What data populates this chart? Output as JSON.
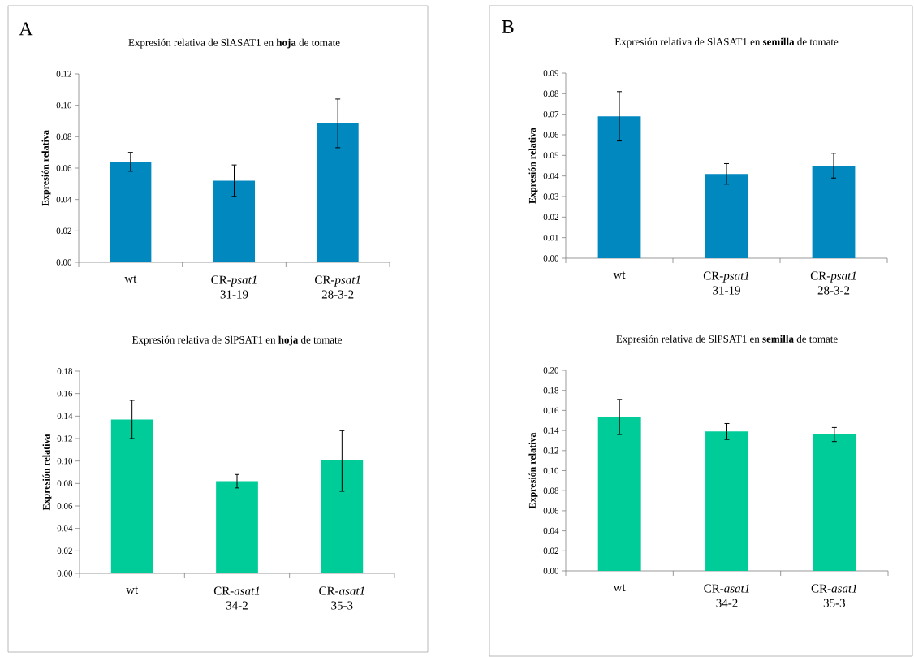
{
  "chart_data": [
    {
      "type": "bar",
      "title": "Expresión relativa de SlASAT1 en **hoja** de tomate",
      "ylabel": "Expresión relativa",
      "annotations": [
        "A"
      ],
      "color": "#0088bf",
      "categories": [
        "wt",
        "CR-*psat1* 31-19",
        "CR-*psat1* 28-3-2"
      ],
      "values": [
        0.064,
        0.052,
        0.089
      ],
      "errors": [
        [
          0.058,
          0.07
        ],
        [
          0.042,
          0.062
        ],
        [
          0.073,
          0.104
        ]
      ],
      "ylim": [
        0,
        0.12
      ],
      "yticks": [
        {
          "value": 0,
          "label": "0.00"
        },
        {
          "value": 0.02,
          "label": "0.02"
        },
        {
          "value": 0.04,
          "label": "0.04"
        },
        {
          "value": 0.06,
          "label": "0.06"
        },
        {
          "value": 0.08,
          "label": "0.08"
        },
        {
          "value": 0.1,
          "label": "0.10"
        },
        {
          "value": 0.12,
          "label": "0.12"
        }
      ]
    },
    {
      "type": "bar",
      "title": "Expresión relativa de SlASAT1 en **semilla** de tomate",
      "ylabel": "Expresión relativa",
      "annotations": [
        "B"
      ],
      "color": "#0088bf",
      "categories": [
        "wt",
        "CR-*psat1* 31-19",
        "CR-*psat1* 28-3-2"
      ],
      "values": [
        0.069,
        0.041,
        0.045
      ],
      "errors": [
        [
          0.057,
          0.081
        ],
        [
          0.036,
          0.046
        ],
        [
          0.039,
          0.051
        ]
      ],
      "ylim": [
        0,
        0.09
      ],
      "yticks": [
        {
          "value": 0,
          "label": "0.00"
        },
        {
          "value": 0.01,
          "label": "0.01"
        },
        {
          "value": 0.02,
          "label": "0.02"
        },
        {
          "value": 0.03,
          "label": "0.03"
        },
        {
          "value": 0.04,
          "label": "0.04"
        },
        {
          "value": 0.05,
          "label": "0.05"
        },
        {
          "value": 0.06,
          "label": "0.06"
        },
        {
          "value": 0.07,
          "label": "0.07"
        },
        {
          "value": 0.08,
          "label": "0.08"
        },
        {
          "value": 0.09,
          "label": "0.09"
        }
      ]
    },
    {
      "type": "bar",
      "title": "Expresión relativa de SlPSAT1 en **hoja** de tomate",
      "ylabel": "Expresión relativa",
      "color": "#00cc99",
      "categories": [
        "wt",
        "CR-*asat1* 34-2",
        "CR-*asat1* 35-3"
      ],
      "values": [
        0.137,
        0.082,
        0.101
      ],
      "errors": [
        [
          0.12,
          0.154
        ],
        [
          0.076,
          0.088
        ],
        [
          0.073,
          0.127
        ]
      ],
      "ylim": [
        0,
        0.18
      ],
      "yticks": [
        {
          "value": 0,
          "label": "0.00"
        },
        {
          "value": 0.02,
          "label": "0.02"
        },
        {
          "value": 0.04,
          "label": "0.04"
        },
        {
          "value": 0.06,
          "label": "0.06"
        },
        {
          "value": 0.08,
          "label": "0.08"
        },
        {
          "value": 0.1,
          "label": "0.10"
        },
        {
          "value": 0.12,
          "label": "0.12"
        },
        {
          "value": 0.14,
          "label": "0.14"
        },
        {
          "value": 0.16,
          "label": "0.16"
        },
        {
          "value": 0.18,
          "label": "0.18"
        }
      ]
    },
    {
      "type": "bar",
      "title": "Expresión relativa de SlPSAT1 en **semilla** de tomate",
      "ylabel": "Expresión relativa",
      "color": "#00cc99",
      "categories": [
        "wt",
        "CR-*asat1* 34-2",
        "CR-*asat1* 35-3"
      ],
      "values": [
        0.153,
        0.139,
        0.136
      ],
      "errors": [
        [
          0.136,
          0.171
        ],
        [
          0.131,
          0.147
        ],
        [
          0.129,
          0.143
        ]
      ],
      "ylim": [
        0,
        0.2
      ],
      "yticks": [
        {
          "value": 0,
          "label": "0.00"
        },
        {
          "value": 0.02,
          "label": "0.02"
        },
        {
          "value": 0.04,
          "label": "0.04"
        },
        {
          "value": 0.06,
          "label": "0.06"
        },
        {
          "value": 0.08,
          "label": "0.08"
        },
        {
          "value": 0.1,
          "label": "0.10"
        },
        {
          "value": 0.12,
          "label": "0.12"
        },
        {
          "value": 0.14,
          "label": "0.14"
        },
        {
          "value": 0.16,
          "label": "0.16"
        },
        {
          "value": 0.18,
          "label": "0.18"
        },
        {
          "value": 0.2,
          "label": "0.20"
        }
      ]
    }
  ]
}
